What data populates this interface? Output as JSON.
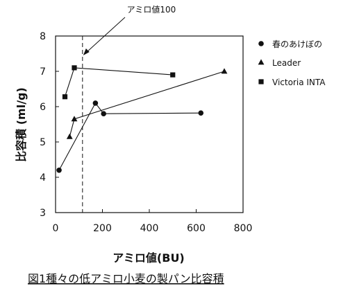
{
  "chart_data": {
    "type": "line",
    "caption": "図1種々の低アミロ小麦の製パン比容積",
    "xlabel": "アミロ値(BU)",
    "ylabel": "比容積 (ml/g)",
    "xlim": [
      0,
      800
    ],
    "ylim": [
      3,
      8
    ],
    "xticks": [
      "0",
      "200",
      "400",
      "600",
      "800"
    ],
    "yticks": [
      "3",
      "4",
      "5",
      "6",
      "7",
      "8"
    ],
    "grid": false,
    "legend_position": "right",
    "reference_line": {
      "x": 115,
      "style": "dashed",
      "label": "アミロ値100"
    },
    "series": [
      {
        "name": "春のあけぼの",
        "marker": "circle",
        "points": [
          [
            15,
            4.2
          ],
          [
            170,
            6.1
          ],
          [
            205,
            5.8
          ],
          [
            620,
            5.82
          ]
        ]
      },
      {
        "name": "Leader",
        "marker": "triangle",
        "points": [
          [
            60,
            5.15
          ],
          [
            80,
            5.65
          ],
          [
            720,
            7.0
          ]
        ]
      },
      {
        "name": "Victoria  INTA",
        "marker": "square",
        "points": [
          [
            40,
            6.28
          ],
          [
            80,
            7.1
          ],
          [
            500,
            6.9
          ]
        ]
      }
    ]
  }
}
